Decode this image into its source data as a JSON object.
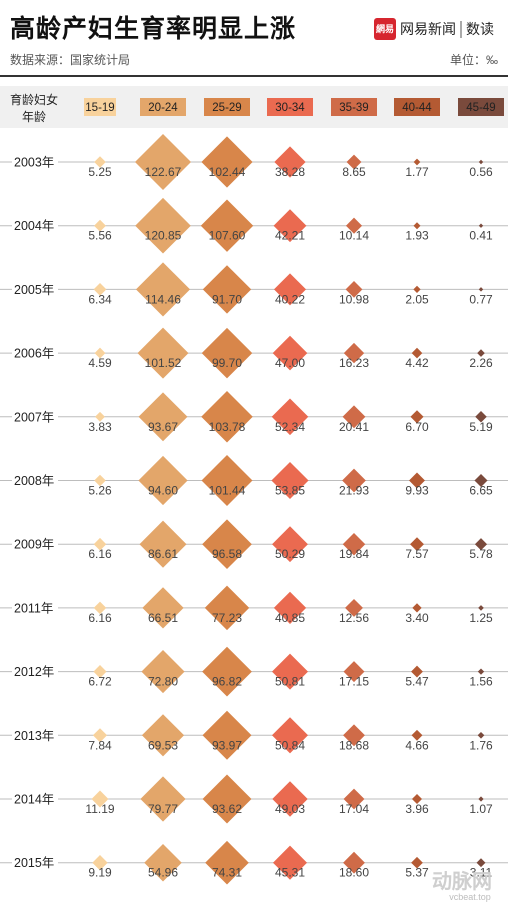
{
  "header": {
    "title": "高龄产妇生育率明显上涨",
    "subtitle": "数据来源：国家统计局",
    "unit": "单位：‰"
  },
  "brand": {
    "logo_text": "網易",
    "name": "网易新闻",
    "column": "数读"
  },
  "row_header": [
    "育龄妇女",
    "年龄"
  ],
  "watermark": {
    "text": "动脉网",
    "url": "vcbeat.top"
  },
  "chart_data": {
    "type": "scatter",
    "title": "高龄产妇生育率明显上涨",
    "subtitle": "数据来源：国家统计局",
    "unit": "‰",
    "age_groups": [
      "15-19",
      "20-24",
      "25-29",
      "30-34",
      "35-39",
      "40-44",
      "45-49"
    ],
    "colors": [
      "#f8d29c",
      "#e3a66a",
      "#d8864a",
      "#ea6a50",
      "#cf6b48",
      "#b45a33",
      "#7a4a3c"
    ],
    "years": [
      "2003年",
      "2004年",
      "2005年",
      "2006年",
      "2007年",
      "2008年",
      "2009年",
      "2011年",
      "2012年",
      "2013年",
      "2014年",
      "2015年"
    ],
    "values": [
      [
        "5.25",
        "122.67",
        "102.44",
        "38.28",
        "8.65",
        "1.77",
        "0.56"
      ],
      [
        "5.56",
        "120.85",
        "107.60",
        "42.21",
        "10.14",
        "1.93",
        "0.41"
      ],
      [
        "6.34",
        "114.46",
        "91.70",
        "40.22",
        "10.98",
        "2.05",
        "0.77"
      ],
      [
        "4.59",
        "101.52",
        "99.70",
        "47.00",
        "16.23",
        "4.42",
        "2.26"
      ],
      [
        "3.83",
        "93.67",
        "103.78",
        "52.34",
        "20.41",
        "6.70",
        "5.19"
      ],
      [
        "5.26",
        "94.60",
        "101.44",
        "53.85",
        "21.93",
        "9.93",
        "6.65"
      ],
      [
        "6.16",
        "86.61",
        "96.58",
        "50.29",
        "19.84",
        "7.57",
        "5.78"
      ],
      [
        "6.16",
        "66.51",
        "77.23",
        "40.85",
        "12.56",
        "3.40",
        "1.25"
      ],
      [
        "6.72",
        "72.80",
        "96.82",
        "50.81",
        "17.15",
        "5.47",
        "1.56"
      ],
      [
        "7.84",
        "69.53",
        "93.97",
        "50.84",
        "18.68",
        "4.66",
        "1.76"
      ],
      [
        "11.19",
        "79.77",
        "93.62",
        "49.03",
        "17.04",
        "3.96",
        "1.07"
      ],
      [
        "9.19",
        "54.96",
        "74.31",
        "45.31",
        "18.60",
        "5.37",
        "3.11"
      ]
    ]
  }
}
